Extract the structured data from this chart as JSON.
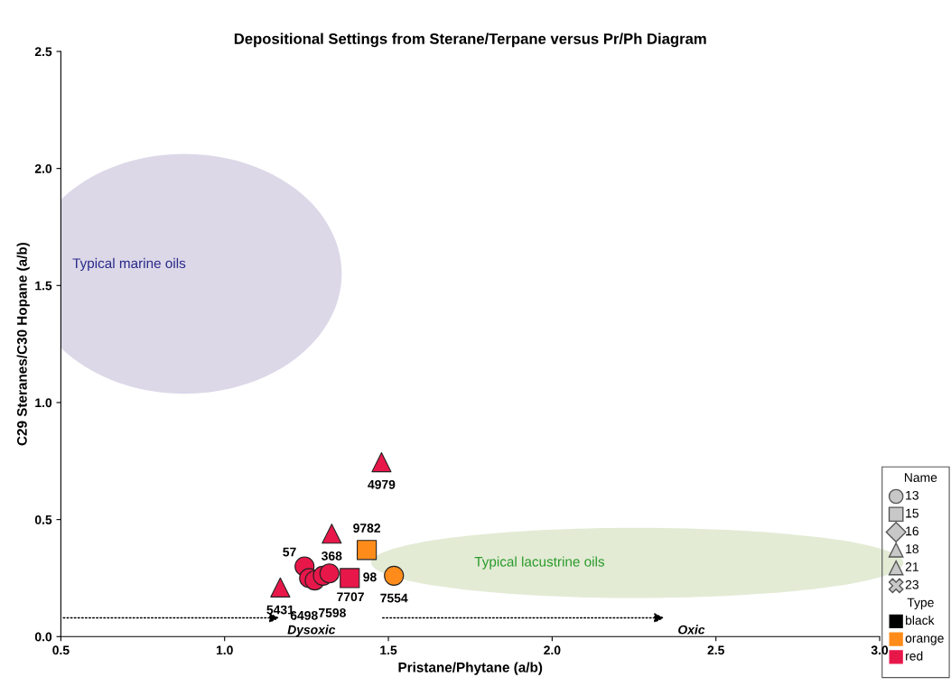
{
  "chart_data": {
    "type": "scatter",
    "title": "Depositional Settings from Sterane/Terpane versus Pr/Ph Diagram",
    "xlabel": "Pristane/Phytane (a/b)",
    "ylabel": "C29 Steranes/C30 Hopane (a/b)",
    "xlim": [
      0.5,
      3.0
    ],
    "ylim": [
      0.0,
      2.5
    ],
    "xticks": [
      {
        "value": 0.5,
        "label": "0.5"
      },
      {
        "value": 1.0,
        "label": "1.0"
      },
      {
        "value": 1.5,
        "label": "1.5"
      },
      {
        "value": 2.0,
        "label": "2.0"
      },
      {
        "value": 2.5,
        "label": "2.5"
      },
      {
        "value": 3.0,
        "label": "3.0"
      }
    ],
    "yticks": [
      {
        "value": 0.0,
        "label": "0.0"
      },
      {
        "value": 0.5,
        "label": "0.5"
      },
      {
        "value": 1.0,
        "label": "1.0"
      },
      {
        "value": 1.5,
        "label": "1.5"
      },
      {
        "value": 2.0,
        "label": "2.0"
      },
      {
        "value": 2.5,
        "label": "2.5"
      }
    ],
    "grid": false,
    "series": [
      {
        "marker": "circle",
        "x": [
          1.244,
          1.258,
          1.275,
          1.3,
          1.32,
          1.517
        ],
        "values": [
          0.3,
          0.25,
          0.24,
          0.26,
          0.27,
          0.26
        ],
        "colors": [
          "#e8174a",
          "#e8174a",
          "#e8174a",
          "#e8174a",
          "#e8174a",
          "#ff8c1a"
        ]
      },
      {
        "marker": "square",
        "x": [
          1.434,
          1.382
        ],
        "values": [
          0.37,
          0.25
        ],
        "colors": [
          "#ff8c1a",
          "#e8174a"
        ]
      },
      {
        "marker": "triangle",
        "x": [
          1.17,
          1.479,
          1.327
        ],
        "values": [
          0.21,
          0.745,
          0.44
        ],
        "colors": [
          "#e8174a",
          "#e8174a",
          "#e8174a"
        ]
      }
    ],
    "annotations": [
      "Typical marine oils",
      "Typical lacustrine oils",
      "Dysoxic",
      "Oxic",
      {
        "text": "57",
        "x": 1.244,
        "y": 0.3
      },
      {
        "text": "6498",
        "x": 1.258,
        "y": 0.25
      },
      {
        "text": "7598",
        "x": 1.275,
        "y": 0.24
      },
      {
        "text": "7707",
        "x": 1.3,
        "y": 0.26
      },
      {
        "text": "7554",
        "x": 1.517,
        "y": 0.26
      },
      {
        "text": "9782",
        "x": 1.434,
        "y": 0.37
      },
      {
        "text": "98",
        "x": 1.382,
        "y": 0.25
      },
      {
        "text": "5431",
        "x": 1.17,
        "y": 0.21
      },
      {
        "text": "4979",
        "x": 1.479,
        "y": 0.745
      },
      {
        "text": "368",
        "x": 1.327,
        "y": 0.44
      },
      "Name",
      "13",
      "15",
      "16",
      "18",
      "21",
      "23",
      "Type",
      "black",
      "orange",
      "red"
    ]
  }
}
